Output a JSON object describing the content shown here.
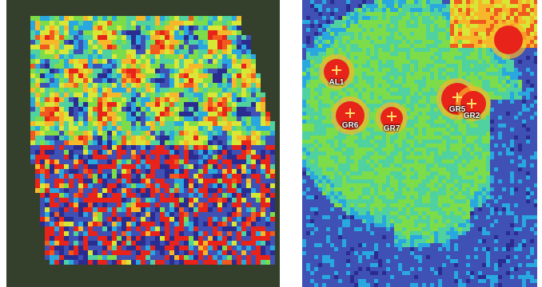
{
  "panels": [
    {
      "id": "left",
      "name": "left-map-panel"
    },
    {
      "id": "right",
      "name": "right-map-panel"
    }
  ],
  "colors": {
    "background": "#2f3a26",
    "scale": [
      "#2b2c8f",
      "#3f51b5",
      "#29a8e0",
      "#4fd1a0",
      "#7ddc4a",
      "#d8e635",
      "#f6b82a",
      "#f05a1e",
      "#e8231a"
    ]
  },
  "stations": [
    {
      "label": "AL1"
    },
    {
      "label": "GR6"
    },
    {
      "label": "GR7"
    },
    {
      "label": "GR5"
    },
    {
      "label": "GR2"
    }
  ]
}
